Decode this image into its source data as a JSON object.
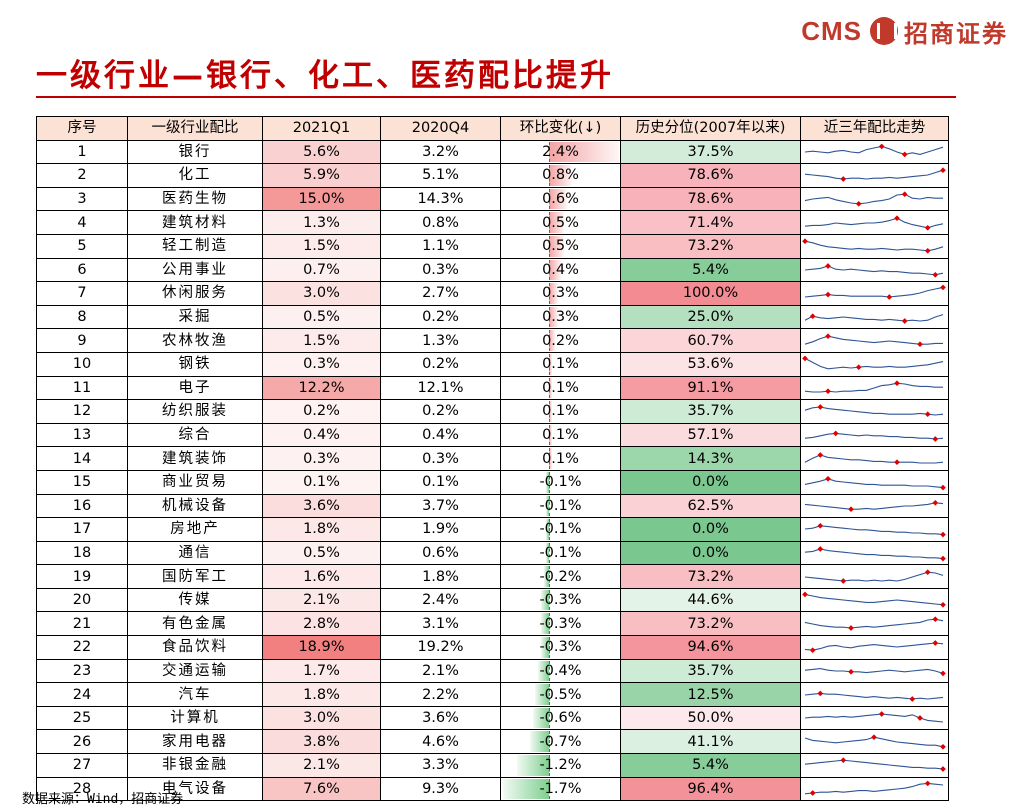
{
  "logo": {
    "cms": "CMS",
    "cn": "招商证券"
  },
  "title": "一级行业—银行、化工、医药配比提升",
  "table": {
    "headers": [
      "序号",
      "一级行业配比",
      "2021Q1",
      "2020Q4",
      "环比变化(↓)",
      "历史分位(2007年以来)",
      "近三年配比走势"
    ],
    "rows": [
      {
        "no": "1",
        "industry": "银行",
        "q1": "5.6%",
        "q4": "3.2%",
        "hoh": "2.4%",
        "hoh_value": 2.4,
        "pct": "37.5%",
        "pct_value": 37.5,
        "q1_value": 5.6,
        "trend": [
          0.5,
          0.55,
          0.5,
          0.45,
          0.55,
          0.6,
          0.5,
          0.45,
          0.65,
          0.75,
          0.85,
          0.7,
          0.5,
          0.35,
          0.45,
          0.35,
          0.5,
          0.65,
          0.8
        ],
        "trend_marks": [
          10,
          13
        ]
      },
      {
        "no": "2",
        "industry": "化工",
        "q1": "5.9%",
        "q4": "5.1%",
        "hoh": "0.8%",
        "hoh_value": 0.8,
        "pct": "78.6%",
        "pct_value": 78.6,
        "q1_value": 5.9,
        "trend": [
          0.55,
          0.5,
          0.45,
          0.4,
          0.3,
          0.25,
          0.3,
          0.3,
          0.25,
          0.3,
          0.3,
          0.35,
          0.3,
          0.35,
          0.4,
          0.45,
          0.5,
          0.65,
          0.8
        ],
        "trend_marks": [
          5,
          18
        ]
      },
      {
        "no": "3",
        "industry": "医药生物",
        "q1": "15.0%",
        "q4": "14.3%",
        "hoh": "0.6%",
        "hoh_value": 0.6,
        "pct": "78.6%",
        "pct_value": 78.6,
        "q1_value": 15.0,
        "trend": [
          0.4,
          0.5,
          0.55,
          0.6,
          0.45,
          0.35,
          0.25,
          0.2,
          0.25,
          0.35,
          0.4,
          0.5,
          0.75,
          0.8,
          0.55,
          0.5,
          0.6,
          0.55,
          0.55
        ],
        "trend_marks": [
          7,
          13
        ]
      },
      {
        "no": "4",
        "industry": "建筑材料",
        "q1": "1.3%",
        "q4": "0.8%",
        "hoh": "0.5%",
        "hoh_value": 0.5,
        "pct": "71.4%",
        "pct_value": 71.4,
        "q1_value": 1.3,
        "trend": [
          0.3,
          0.35,
          0.35,
          0.4,
          0.5,
          0.45,
          0.4,
          0.45,
          0.5,
          0.5,
          0.55,
          0.65,
          0.8,
          0.55,
          0.4,
          0.3,
          0.2,
          0.35,
          0.45
        ],
        "trend_marks": [
          12,
          16
        ]
      },
      {
        "no": "5",
        "industry": "轻工制造",
        "q1": "1.5%",
        "q4": "1.1%",
        "hoh": "0.5%",
        "hoh_value": 0.5,
        "pct": "73.2%",
        "pct_value": 73.2,
        "q1_value": 1.5,
        "trend": [
          0.8,
          0.7,
          0.55,
          0.45,
          0.4,
          0.35,
          0.3,
          0.35,
          0.3,
          0.3,
          0.35,
          0.3,
          0.25,
          0.3,
          0.3,
          0.25,
          0.2,
          0.3,
          0.45
        ],
        "trend_marks": [
          0,
          16
        ]
      },
      {
        "no": "6",
        "industry": "公用事业",
        "q1": "0.7%",
        "q4": "0.3%",
        "hoh": "0.4%",
        "hoh_value": 0.4,
        "pct": "5.4%",
        "pct_value": 5.4,
        "q1_value": 0.7,
        "trend": [
          0.5,
          0.55,
          0.6,
          0.75,
          0.55,
          0.5,
          0.55,
          0.5,
          0.45,
          0.4,
          0.45,
          0.4,
          0.4,
          0.35,
          0.3,
          0.3,
          0.25,
          0.2,
          0.3
        ],
        "trend_marks": [
          3,
          17
        ]
      },
      {
        "no": "7",
        "industry": "休闲服务",
        "q1": "3.0%",
        "q4": "2.7%",
        "hoh": "0.3%",
        "hoh_value": 0.3,
        "pct": "100.0%",
        "pct_value": 100.0,
        "q1_value": 3.0,
        "trend": [
          0.25,
          0.3,
          0.35,
          0.4,
          0.35,
          0.35,
          0.3,
          0.3,
          0.3,
          0.3,
          0.3,
          0.25,
          0.3,
          0.35,
          0.4,
          0.5,
          0.65,
          0.75,
          0.85
        ],
        "trend_marks": [
          3,
          11,
          18
        ]
      },
      {
        "no": "8",
        "industry": "采掘",
        "q1": "0.5%",
        "q4": "0.2%",
        "hoh": "0.3%",
        "hoh_value": 0.3,
        "pct": "25.0%",
        "pct_value": 25.0,
        "q1_value": 0.5,
        "trend": [
          0.3,
          0.55,
          0.45,
          0.4,
          0.45,
          0.5,
          0.45,
          0.4,
          0.35,
          0.35,
          0.3,
          0.35,
          0.3,
          0.25,
          0.3,
          0.25,
          0.3,
          0.5,
          0.65
        ],
        "trend_marks": [
          1,
          13
        ]
      },
      {
        "no": "9",
        "industry": "农林牧渔",
        "q1": "1.5%",
        "q4": "1.3%",
        "hoh": "0.2%",
        "hoh_value": 0.2,
        "pct": "60.7%",
        "pct_value": 60.7,
        "q1_value": 1.5,
        "trend": [
          0.3,
          0.45,
          0.65,
          0.8,
          0.7,
          0.6,
          0.55,
          0.5,
          0.45,
          0.4,
          0.45,
          0.5,
          0.45,
          0.4,
          0.35,
          0.3,
          0.3,
          0.35,
          0.35
        ],
        "trend_marks": [
          3,
          15
        ]
      },
      {
        "no": "10",
        "industry": "钢铁",
        "q1": "0.3%",
        "q4": "0.2%",
        "hoh": "0.1%",
        "hoh_value": 0.1,
        "pct": "53.6%",
        "pct_value": 53.6,
        "q1_value": 0.3,
        "trend": [
          0.85,
          0.6,
          0.35,
          0.2,
          0.25,
          0.3,
          0.25,
          0.3,
          0.35,
          0.3,
          0.3,
          0.35,
          0.3,
          0.3,
          0.35,
          0.4,
          0.45,
          0.55,
          0.65
        ],
        "trend_marks": [
          0,
          7
        ]
      },
      {
        "no": "11",
        "industry": "电子",
        "q1": "12.2%",
        "q4": "12.1%",
        "hoh": "0.1%",
        "hoh_value": 0.1,
        "pct": "91.1%",
        "pct_value": 91.1,
        "q1_value": 12.2,
        "trend": [
          0.3,
          0.25,
          0.25,
          0.3,
          0.25,
          0.3,
          0.3,
          0.35,
          0.35,
          0.5,
          0.65,
          0.7,
          0.8,
          0.75,
          0.65,
          0.6,
          0.6,
          0.55,
          0.55
        ],
        "trend_marks": [
          3,
          12
        ]
      },
      {
        "no": "12",
        "industry": "纺织服装",
        "q1": "0.2%",
        "q4": "0.2%",
        "hoh": "0.1%",
        "hoh_value": 0.1,
        "pct": "35.7%",
        "pct_value": 35.7,
        "q1_value": 0.2,
        "trend": [
          0.55,
          0.7,
          0.75,
          0.65,
          0.6,
          0.55,
          0.5,
          0.45,
          0.4,
          0.35,
          0.35,
          0.3,
          0.3,
          0.3,
          0.3,
          0.35,
          0.3,
          0.25,
          0.3
        ],
        "trend_marks": [
          2,
          16
        ]
      },
      {
        "no": "13",
        "industry": "综合",
        "q1": "0.4%",
        "q4": "0.4%",
        "hoh": "0.1%",
        "hoh_value": 0.1,
        "pct": "57.1%",
        "pct_value": 57.1,
        "q1_value": 0.4,
        "trend": [
          0.3,
          0.35,
          0.45,
          0.55,
          0.6,
          0.55,
          0.5,
          0.45,
          0.5,
          0.45,
          0.45,
          0.4,
          0.4,
          0.35,
          0.35,
          0.3,
          0.3,
          0.25,
          0.3
        ],
        "trend_marks": [
          4,
          17
        ]
      },
      {
        "no": "14",
        "industry": "建筑装饰",
        "q1": "0.3%",
        "q4": "0.3%",
        "hoh": "0.1%",
        "hoh_value": 0.1,
        "pct": "14.3%",
        "pct_value": 14.3,
        "q1_value": 0.3,
        "trend": [
          0.3,
          0.55,
          0.75,
          0.6,
          0.55,
          0.5,
          0.45,
          0.45,
          0.4,
          0.35,
          0.35,
          0.3,
          0.3,
          0.3,
          0.3,
          0.25,
          0.25,
          0.25,
          0.3
        ],
        "trend_marks": [
          2,
          12
        ]
      },
      {
        "no": "15",
        "industry": "商业贸易",
        "q1": "0.1%",
        "q4": "0.1%",
        "hoh": "-0.1%",
        "hoh_value": -0.1,
        "pct": "0.0%",
        "pct_value": 0.0,
        "q1_value": 0.1,
        "trend": [
          0.35,
          0.45,
          0.55,
          0.7,
          0.55,
          0.5,
          0.45,
          0.4,
          0.35,
          0.35,
          0.3,
          0.3,
          0.3,
          0.3,
          0.25,
          0.25,
          0.25,
          0.2,
          0.15
        ],
        "trend_marks": [
          3,
          18
        ]
      },
      {
        "no": "16",
        "industry": "机械设备",
        "q1": "3.6%",
        "q4": "3.7%",
        "hoh": "-0.1%",
        "hoh_value": -0.1,
        "pct": "62.5%",
        "pct_value": 62.5,
        "q1_value": 3.6,
        "trend": [
          0.6,
          0.55,
          0.5,
          0.45,
          0.4,
          0.35,
          0.3,
          0.3,
          0.35,
          0.3,
          0.35,
          0.4,
          0.45,
          0.5,
          0.5,
          0.55,
          0.6,
          0.7,
          0.65
        ],
        "trend_marks": [
          6,
          17
        ]
      },
      {
        "no": "17",
        "industry": "房地产",
        "q1": "1.8%",
        "q4": "1.9%",
        "hoh": "-0.1%",
        "hoh_value": -0.1,
        "pct": "0.0%",
        "pct_value": 0.0,
        "q1_value": 1.8,
        "trend": [
          0.5,
          0.55,
          0.7,
          0.65,
          0.6,
          0.55,
          0.5,
          0.45,
          0.45,
          0.4,
          0.35,
          0.35,
          0.3,
          0.3,
          0.25,
          0.25,
          0.2,
          0.2,
          0.15
        ],
        "trend_marks": [
          2,
          18
        ]
      },
      {
        "no": "18",
        "industry": "通信",
        "q1": "0.5%",
        "q4": "0.6%",
        "hoh": "-0.1%",
        "hoh_value": -0.1,
        "pct": "0.0%",
        "pct_value": 0.0,
        "q1_value": 0.5,
        "trend": [
          0.55,
          0.6,
          0.75,
          0.65,
          0.6,
          0.55,
          0.5,
          0.45,
          0.4,
          0.4,
          0.35,
          0.35,
          0.3,
          0.3,
          0.25,
          0.25,
          0.2,
          0.2,
          0.15
        ],
        "trend_marks": [
          2,
          18
        ]
      },
      {
        "no": "19",
        "industry": "国防军工",
        "q1": "1.6%",
        "q4": "1.8%",
        "hoh": "-0.2%",
        "hoh_value": -0.2,
        "pct": "73.2%",
        "pct_value": 73.2,
        "q1_value": 1.6,
        "trend": [
          0.5,
          0.45,
          0.4,
          0.35,
          0.3,
          0.25,
          0.3,
          0.3,
          0.25,
          0.3,
          0.25,
          0.3,
          0.25,
          0.35,
          0.5,
          0.65,
          0.8,
          0.75,
          0.6
        ],
        "trend_marks": [
          5,
          16
        ]
      },
      {
        "no": "20",
        "industry": "传媒",
        "q1": "2.1%",
        "q4": "2.4%",
        "hoh": "-0.3%",
        "hoh_value": -0.3,
        "pct": "44.6%",
        "pct_value": 44.6,
        "q1_value": 2.1,
        "trend": [
          0.85,
          0.75,
          0.65,
          0.6,
          0.55,
          0.5,
          0.45,
          0.4,
          0.35,
          0.35,
          0.4,
          0.45,
          0.5,
          0.45,
          0.4,
          0.35,
          0.3,
          0.25,
          0.2
        ],
        "trend_marks": [
          0,
          18
        ]
      },
      {
        "no": "21",
        "industry": "有色金属",
        "q1": "2.8%",
        "q4": "3.1%",
        "hoh": "-0.3%",
        "hoh_value": -0.3,
        "pct": "73.2%",
        "pct_value": 73.2,
        "q1_value": 2.8,
        "trend": [
          0.6,
          0.5,
          0.4,
          0.35,
          0.3,
          0.3,
          0.25,
          0.3,
          0.35,
          0.3,
          0.35,
          0.4,
          0.45,
          0.5,
          0.55,
          0.6,
          0.75,
          0.8,
          0.7
        ],
        "trend_marks": [
          6,
          17
        ]
      },
      {
        "no": "22",
        "industry": "食品饮料",
        "q1": "18.9%",
        "q4": "19.2%",
        "hoh": "-0.3%",
        "hoh_value": -0.3,
        "pct": "94.6%",
        "pct_value": 94.6,
        "q1_value": 18.9,
        "trend": [
          0.35,
          0.3,
          0.4,
          0.55,
          0.6,
          0.5,
          0.45,
          0.55,
          0.6,
          0.65,
          0.6,
          0.55,
          0.5,
          0.55,
          0.6,
          0.65,
          0.7,
          0.75,
          0.7
        ],
        "trend_marks": [
          1,
          17
        ]
      },
      {
        "no": "23",
        "industry": "交通运输",
        "q1": "1.7%",
        "q4": "2.1%",
        "hoh": "-0.4%",
        "hoh_value": -0.4,
        "pct": "35.7%",
        "pct_value": 35.7,
        "q1_value": 1.7,
        "trend": [
          0.55,
          0.6,
          0.65,
          0.55,
          0.5,
          0.5,
          0.45,
          0.45,
          0.4,
          0.45,
          0.5,
          0.55,
          0.5,
          0.45,
          0.5,
          0.55,
          0.6,
          0.5,
          0.35
        ],
        "trend_marks": [
          6,
          18
        ]
      },
      {
        "no": "24",
        "industry": "汽车",
        "q1": "1.8%",
        "q4": "2.2%",
        "hoh": "-0.5%",
        "hoh_value": -0.5,
        "pct": "12.5%",
        "pct_value": 12.5,
        "q1_value": 1.8,
        "trend": [
          0.5,
          0.55,
          0.6,
          0.55,
          0.55,
          0.5,
          0.45,
          0.4,
          0.35,
          0.4,
          0.35,
          0.3,
          0.35,
          0.3,
          0.25,
          0.3,
          0.25,
          0.3,
          0.35
        ],
        "trend_marks": [
          2,
          14
        ]
      },
      {
        "no": "25",
        "industry": "计算机",
        "q1": "3.0%",
        "q4": "3.6%",
        "hoh": "-0.6%",
        "hoh_value": -0.6,
        "pct": "50.0%",
        "pct_value": 50.0,
        "q1_value": 3.0,
        "trend": [
          0.5,
          0.55,
          0.55,
          0.6,
          0.55,
          0.6,
          0.55,
          0.6,
          0.65,
          0.7,
          0.75,
          0.7,
          0.65,
          0.6,
          0.7,
          0.5,
          0.35,
          0.3,
          0.25
        ],
        "trend_marks": [
          10,
          15
        ]
      },
      {
        "no": "26",
        "industry": "家用电器",
        "q1": "3.8%",
        "q4": "4.6%",
        "hoh": "-0.7%",
        "hoh_value": -0.7,
        "pct": "41.1%",
        "pct_value": 41.1,
        "q1_value": 3.8,
        "trend": [
          0.75,
          0.6,
          0.55,
          0.5,
          0.45,
          0.5,
          0.55,
          0.6,
          0.65,
          0.8,
          0.7,
          0.6,
          0.5,
          0.45,
          0.4,
          0.35,
          0.3,
          0.3,
          0.2
        ],
        "trend_marks": [
          9,
          18
        ]
      },
      {
        "no": "27",
        "industry": "非银金融",
        "q1": "2.1%",
        "q4": "3.3%",
        "hoh": "-1.2%",
        "hoh_value": -1.2,
        "pct": "5.4%",
        "pct_value": 5.4,
        "q1_value": 2.1,
        "trend": [
          0.55,
          0.6,
          0.65,
          0.7,
          0.75,
          0.8,
          0.75,
          0.7,
          0.65,
          0.6,
          0.55,
          0.5,
          0.45,
          0.4,
          0.35,
          0.35,
          0.3,
          0.3,
          0.25
        ],
        "trend_marks": [
          5,
          18
        ]
      },
      {
        "no": "28",
        "industry": "电气设备",
        "q1": "7.6%",
        "q4": "9.3%",
        "hoh": "-1.7%",
        "hoh_value": -1.7,
        "pct": "96.4%",
        "pct_value": 96.4,
        "q1_value": 7.6,
        "trend": [
          0.2,
          0.25,
          0.3,
          0.3,
          0.35,
          0.3,
          0.35,
          0.4,
          0.4,
          0.35,
          0.4,
          0.45,
          0.5,
          0.55,
          0.65,
          0.8,
          0.85,
          0.8,
          0.75
        ],
        "trend_marks": [
          1,
          16
        ]
      }
    ]
  },
  "source": "数据来源：Wind，招商证券",
  "colors": {
    "title": "#c00000",
    "header_bg": "#fbe2d5",
    "red_strong": "#f08080",
    "green_strong": "#63be7b",
    "bar_pos": "#f4a3a3",
    "bar_neg": "#7fcf8f",
    "trend_line": "#2f5496",
    "trend_mark": "#e00000"
  }
}
